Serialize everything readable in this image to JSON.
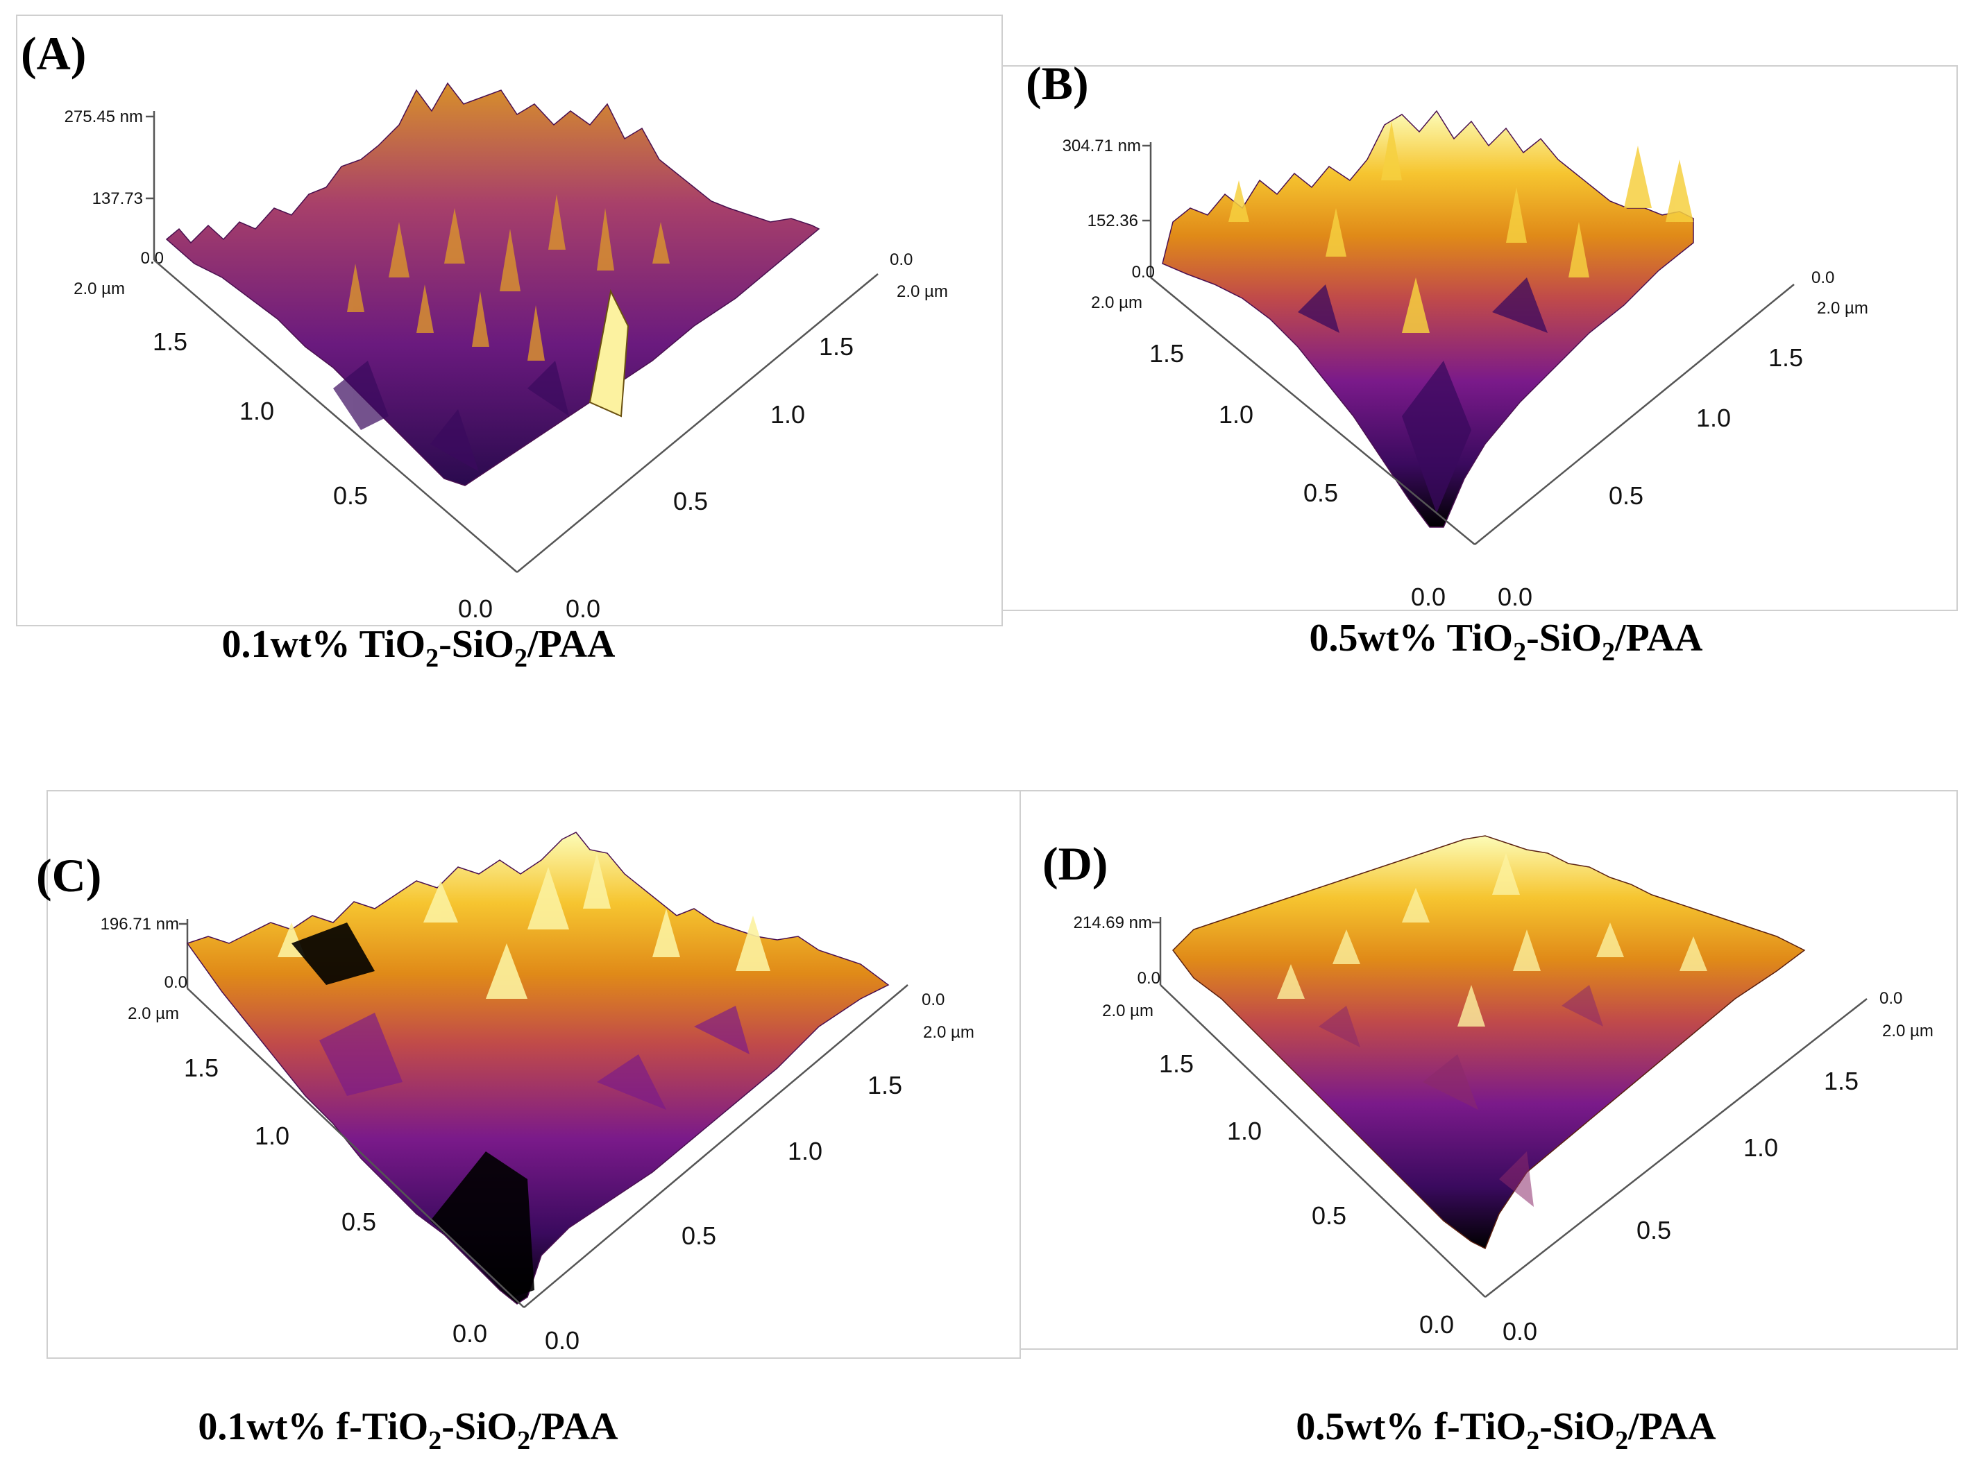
{
  "panels": [
    {
      "letter": "(A)",
      "z_max_label": "275.45 nm",
      "z_mid_label": "137.73",
      "z_min_label": "0.0",
      "left_axis": [
        "2.0 µm",
        "1.5",
        "1.0",
        "0.5",
        "0.0"
      ],
      "right_axis": [
        "0.0",
        "2.0 µm",
        "1.5",
        "1.0",
        "0.5",
        "0.0"
      ],
      "caption": {
        "pre": "0.1wt% TiO",
        "s1": "2",
        "mid": "-SiO",
        "s2": "2",
        "post": "/PAA"
      }
    },
    {
      "letter": "(B)",
      "z_max_label": "304.71 nm",
      "z_mid_label": "152.36",
      "z_min_label": "0.0",
      "left_axis": [
        "2.0 µm",
        "1.5",
        "1.0",
        "0.5",
        "0.0"
      ],
      "right_axis": [
        "0.0",
        "2.0 µm",
        "1.5",
        "1.0",
        "0.5",
        "0.0"
      ],
      "caption": {
        "pre": "0.5wt% TiO",
        "s1": "2",
        "mid": "-SiO",
        "s2": "2",
        "post": "/PAA"
      }
    },
    {
      "letter": "(C)",
      "z_max_label": "196.71 nm",
      "z_mid_label": "",
      "z_min_label": "0.0",
      "left_axis": [
        "2.0 µm",
        "1.5",
        "1.0",
        "0.5",
        "0.0"
      ],
      "right_axis": [
        "0.0",
        "2.0 µm",
        "1.5",
        "1.0",
        "0.5",
        "0.0"
      ],
      "caption": {
        "pre": "0.1wt% f-TiO",
        "s1": "2",
        "mid": "-SiO",
        "s2": "2",
        "post": "/PAA"
      }
    },
    {
      "letter": "(D)",
      "z_max_label": "214.69 nm",
      "z_mid_label": "",
      "z_min_label": "0.0",
      "left_axis": [
        "2.0 µm",
        "1.5",
        "1.0",
        "0.5",
        "0.0"
      ],
      "right_axis": [
        "0.0",
        "2.0 µm",
        "1.5",
        "1.0",
        "0.5",
        "0.0"
      ],
      "caption": {
        "pre": "0.5wt% f-TiO",
        "s1": "2",
        "mid": "-SiO",
        "s2": "2",
        "post": "/PAA"
      }
    }
  ],
  "colormap": [
    "#000000",
    "#3a0a5e",
    "#6a1a8a",
    "#a0307e",
    "#d0582c",
    "#e88a10",
    "#f6c530",
    "#fcfca8"
  ]
}
